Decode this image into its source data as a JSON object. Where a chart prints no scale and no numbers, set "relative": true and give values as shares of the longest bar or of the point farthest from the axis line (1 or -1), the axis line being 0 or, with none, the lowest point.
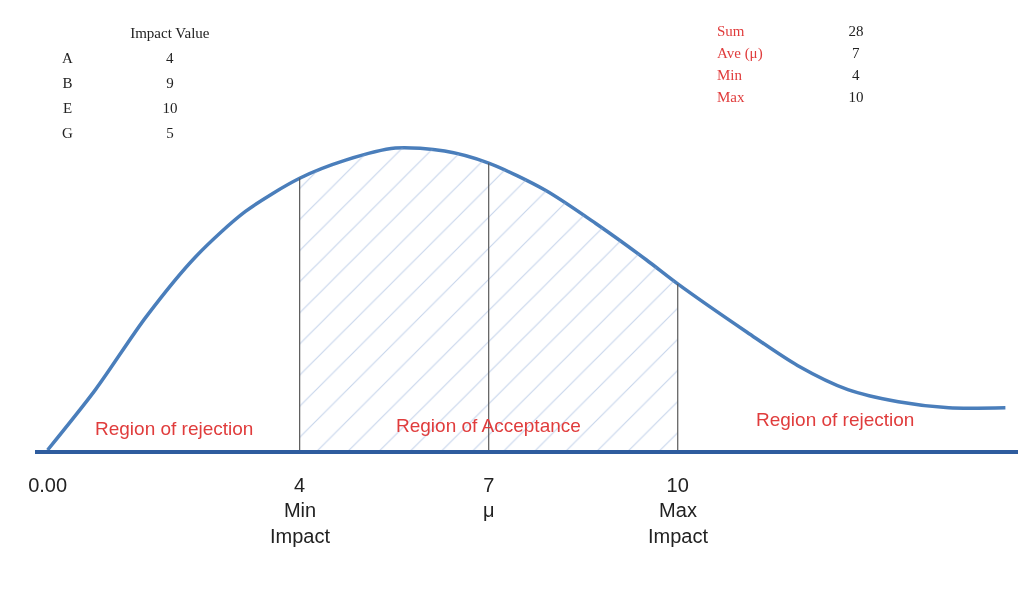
{
  "chart_data": {
    "type": "line",
    "relative": true,
    "x": [
      0,
      0.76,
      1.56,
      2.35,
      3.14,
      4,
      4.73,
      5.52,
      6.3,
      7,
      7.9,
      8.7,
      9.5,
      10,
      11.1,
      11.9,
      12.7,
      13.5,
      14.3,
      15.2
    ],
    "series": [
      {
        "color": "#4a7ebb",
        "values": [
          0,
          0.2,
          0.44,
          0.64,
          0.79,
          0.9,
          0.96,
          1.0,
          0.99,
          0.95,
          0.86,
          0.75,
          0.63,
          0.55,
          0.39,
          0.28,
          0.2,
          0.16,
          0.14,
          0.14
        ]
      },
      {
        "type": "area",
        "color": "#8eaad6",
        "x": [
          4,
          4.73,
          5.52,
          6.3,
          7,
          7.9,
          8.7,
          9.5,
          10
        ],
        "values": [
          0.9,
          0.96,
          1.0,
          0.99,
          0.95,
          0.86,
          0.75,
          0.63,
          0.55
        ]
      }
    ],
    "xlim": [
      -0.2,
      15.4
    ],
    "xticks": [
      {
        "value": 0,
        "label": "0.00"
      },
      4,
      7,
      10
    ],
    "ref_lines": [
      {
        "axis": "x",
        "value": 4,
        "label": "Min Impact",
        "color": "#595959"
      },
      {
        "axis": "x",
        "value": 7,
        "label": "μ",
        "color": "#595959"
      },
      {
        "axis": "x",
        "value": 10,
        "label": "Max Impact",
        "color": "#595959"
      }
    ],
    "annotations": [
      "\tImpact Value\nA\t4\nB\t9\nE\t10\nG\t5",
      "Sum\t28\nAve (μ)\t7\nMin\t4\nMax\t10",
      "Region of rejection",
      "Region of Acceptance",
      "Region of rejection"
    ],
    "marker": "none",
    "line_style": "solid"
  }
}
